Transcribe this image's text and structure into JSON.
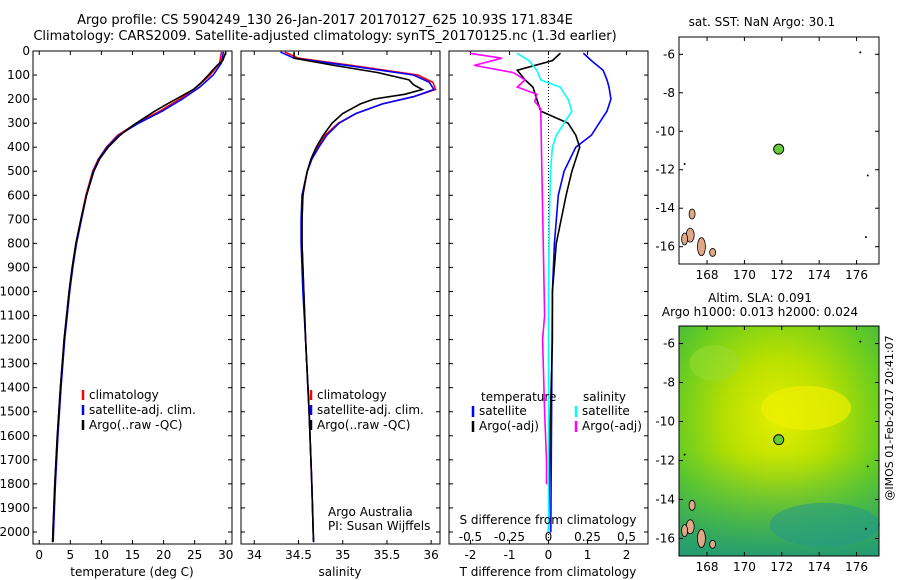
{
  "header": {
    "title_line1": "Argo profile: CS 5904249_130 26-Jan-2017 20170127_625 10.93S 171.834E",
    "title_line2": "Climatology: CARS2009. Satellite-adjusted climatology: synTS_20170125.nc (1.3d earlier)",
    "sst_title": "sat. SST: NaN Argo: 30.1",
    "sla_title_line1": "Altim. SLA: 0.091",
    "sla_title_line2": "Argo h1000: 0.013 h2000: 0.024",
    "side_stamp": "@IMOS 01-Feb-2017 20:41:07"
  },
  "colors": {
    "climatology": "#ff0000",
    "satellite": "#0000ff",
    "argo": "#000000",
    "sal_satellite": "#00ffff",
    "sal_argo": "#ff00ff",
    "float_marker": "#66cc33",
    "land": "#e0a888"
  },
  "chart_data": [
    {
      "type": "line",
      "id": "temperature",
      "xlabel": "temperature (deg C)",
      "xlim": [
        -1,
        31
      ],
      "ylim": [
        2050,
        0
      ],
      "x_ticks": [
        "0",
        "5",
        "10",
        "15",
        "20",
        "25",
        "30"
      ],
      "y_ticks": [
        "0",
        "100",
        "200",
        "300",
        "400",
        "500",
        "600",
        "700",
        "800",
        "900",
        "1000",
        "1100",
        "1200",
        "1300",
        "1400",
        "1500",
        "1600",
        "1700",
        "1800",
        "1900",
        "2000"
      ],
      "legend": {
        "placement": "lower-middle",
        "entries": [
          "climatology",
          "satellite-adj. clim.",
          "Argo(..raw -QC)"
        ]
      },
      "series": [
        {
          "name": "climatology",
          "color": "#ff0000",
          "depth": [
            5,
            50,
            100,
            150,
            200,
            250,
            300,
            350,
            400,
            450,
            500,
            600,
            700,
            800,
            900,
            1000,
            1200,
            1400,
            1600,
            1800,
            2000,
            2040
          ],
          "values": [
            29.3,
            29,
            27.5,
            25.3,
            22.6,
            19.4,
            15.7,
            12.6,
            10.8,
            9.5,
            8.6,
            7.5,
            6.7,
            5.9,
            5.3,
            4.8,
            4,
            3.4,
            2.9,
            2.5,
            2.2,
            2.15
          ]
        },
        {
          "name": "satellite-adj. clim.",
          "color": "#0000ff",
          "depth": [
            5,
            50,
            100,
            150,
            200,
            250,
            300,
            350,
            400,
            450,
            500,
            600,
            700,
            800,
            900,
            1000,
            1200,
            1400,
            1600,
            1800,
            2000,
            2040
          ],
          "values": [
            29.6,
            29.3,
            28,
            25.8,
            23,
            19.8,
            16,
            12.8,
            10.9,
            9.6,
            8.7,
            7.6,
            6.8,
            6,
            5.4,
            4.9,
            4.1,
            3.5,
            3,
            2.6,
            2.3,
            2.25
          ]
        },
        {
          "name": "Argo(..raw -QC)",
          "color": "#000000",
          "depth": [
            5,
            20,
            40,
            60,
            80,
            100,
            130,
            160,
            190,
            220,
            250,
            280,
            310,
            350,
            400,
            450,
            500,
            550,
            600,
            700,
            800,
            900,
            1000,
            1200,
            1400,
            1600,
            1800,
            2000,
            2040
          ],
          "values": [
            30,
            29.8,
            29.5,
            28.6,
            27.9,
            27.2,
            26.1,
            24.8,
            22.7,
            20.6,
            18.6,
            16.8,
            15,
            13,
            11.1,
            9.7,
            8.8,
            8.2,
            7.6,
            6.7,
            5.9,
            5.3,
            4.8,
            4,
            3.4,
            2.9,
            2.5,
            2.2,
            2.15
          ]
        }
      ]
    },
    {
      "type": "line",
      "id": "salinity",
      "xlabel": "salinity",
      "xlim": [
        33.85,
        36.1
      ],
      "ylim": [
        2050,
        0
      ],
      "x_ticks": [
        "34",
        "34.5",
        "35",
        "35.5",
        "36"
      ],
      "legend": {
        "placement": "lower-middle",
        "entries": [
          "climatology",
          "satellite-adj. clim.",
          "Argo(..raw -QC)"
        ]
      },
      "annotations": [
        "Argo Australia",
        "PI: Susan Wijffels"
      ],
      "series": [
        {
          "name": "climatology",
          "color": "#ff0000",
          "depth": [
            5,
            30,
            60,
            100,
            130,
            160,
            190,
            220,
            260,
            300,
            350,
            400,
            450,
            500,
            600,
            700,
            800,
            1000,
            1200,
            1500,
            1800,
            2040
          ],
          "values": [
            34.35,
            34.5,
            35.1,
            35.85,
            36.02,
            36.05,
            35.8,
            35.45,
            35.15,
            34.95,
            34.8,
            34.72,
            34.65,
            34.6,
            34.55,
            34.54,
            34.54,
            34.56,
            34.58,
            34.62,
            34.65,
            34.67
          ]
        },
        {
          "name": "satellite-adj. clim.",
          "color": "#0000ff",
          "depth": [
            5,
            30,
            60,
            100,
            130,
            160,
            190,
            220,
            260,
            300,
            350,
            400,
            450,
            500,
            600,
            700,
            800,
            1000,
            1200,
            1500,
            1800,
            2040
          ],
          "values": [
            34.3,
            34.45,
            35.05,
            35.8,
            35.98,
            36.03,
            35.8,
            35.45,
            35.15,
            34.96,
            34.82,
            34.73,
            34.65,
            34.6,
            34.54,
            34.53,
            34.53,
            34.55,
            34.58,
            34.62,
            34.65,
            34.67
          ]
        },
        {
          "name": "Argo(..raw -QC)",
          "color": "#000000",
          "depth": [
            5,
            30,
            60,
            90,
            120,
            140,
            160,
            180,
            200,
            220,
            260,
            300,
            350,
            400,
            450,
            500,
            550,
            600,
            700,
            800,
            1000,
            1200,
            1500,
            1800,
            2040
          ],
          "values": [
            34.45,
            34.45,
            34.9,
            35.4,
            35.75,
            35.8,
            35.9,
            35.7,
            35.35,
            35.2,
            35,
            34.88,
            34.78,
            34.7,
            34.64,
            34.6,
            34.57,
            34.55,
            34.54,
            34.54,
            34.56,
            34.58,
            34.62,
            34.65,
            34.67
          ]
        }
      ]
    },
    {
      "type": "line",
      "id": "difference",
      "xlabel": "T difference from climatology",
      "xlabel_top": "S difference from climatology",
      "xlim": [
        -2.55,
        2.55
      ],
      "ylim": [
        2050,
        0
      ],
      "x_ticks": [
        "-2",
        "-1",
        "0",
        "1",
        "2"
      ],
      "x_ticks_s": [
        "-0.5",
        "-0.25",
        "0",
        "0.25",
        "0.5"
      ],
      "legend": {
        "placement": "lower-middle",
        "group_titles": [
          "temperature",
          "salinity"
        ],
        "entries": [
          "satellite",
          "Argo(-adj)",
          "satellite",
          "Argo(-adj)"
        ]
      },
      "series": [
        {
          "name": "temperature satellite",
          "color": "#0000ff",
          "depth": [
            10,
            40,
            80,
            120,
            150,
            200,
            250,
            300,
            350,
            400,
            500,
            600,
            800,
            1000,
            1500,
            2000
          ],
          "values": [
            0.9,
            1.1,
            1.4,
            1.5,
            1.55,
            1.6,
            1.5,
            1.3,
            1.1,
            0.7,
            0.4,
            0.25,
            0.15,
            0.1,
            0.08,
            0.06
          ]
        },
        {
          "name": "temperature Argo(-adj)",
          "color": "#000000",
          "depth": [
            10,
            40,
            80,
            120,
            150,
            200,
            250,
            300,
            350,
            400,
            450,
            500,
            600,
            800,
            1000,
            1200,
            1500,
            2000
          ],
          "values": [
            0.3,
            0.1,
            -0.8,
            -0.6,
            -0.4,
            -0.3,
            -0.2,
            0.5,
            0.7,
            0.8,
            0.7,
            0.6,
            0.45,
            0.2,
            0.1,
            0.1,
            0.05,
            0
          ]
        },
        {
          "name": "salinity satellite",
          "color": "#00ffff",
          "depth": [
            10,
            40,
            80,
            120,
            150,
            200,
            250,
            300,
            350,
            400,
            500,
            700,
            1000,
            1500,
            2000
          ],
          "values": [
            -0.8,
            -0.5,
            -0.3,
            -0.2,
            0.3,
            0.5,
            0.6,
            0.4,
            0.2,
            0.1,
            0.05,
            0.02,
            0,
            0,
            0
          ]
        },
        {
          "name": "salinity Argo(-adj)",
          "color": "#ff00ff",
          "depth": [
            10,
            30,
            60,
            90,
            120,
            150,
            180,
            210,
            240,
            1100,
            1200,
            1500,
            1700,
            1800
          ],
          "values": [
            -2,
            -1.2,
            -1.9,
            -0.9,
            -0.6,
            -0.8,
            -0.3,
            -0.35,
            -0.2,
            -0.1,
            -0.15,
            -0.1,
            -0.05,
            -0.05
          ]
        }
      ]
    },
    {
      "type": "scatter",
      "id": "sst_map",
      "xlim": [
        166.5,
        177.2
      ],
      "ylim": [
        -16.9,
        -5.1
      ],
      "x_ticks": [
        "168",
        "170",
        "172",
        "174",
        "176"
      ],
      "y_ticks": [
        "-6",
        "-8",
        "-10",
        "-12",
        "-14",
        "-16"
      ],
      "points": [
        {
          "lon": 171.834,
          "lat": -10.93
        }
      ]
    },
    {
      "type": "heatmap",
      "id": "sla_map",
      "xlim": [
        166.5,
        177.2
      ],
      "ylim": [
        -16.9,
        -5.1
      ],
      "x_ticks": [
        "168",
        "170",
        "172",
        "174",
        "176"
      ],
      "y_ticks": [
        "-6",
        "-8",
        "-10",
        "-12",
        "-14",
        "-16"
      ],
      "points": [
        {
          "lon": 171.834,
          "lat": -10.93
        }
      ]
    }
  ]
}
